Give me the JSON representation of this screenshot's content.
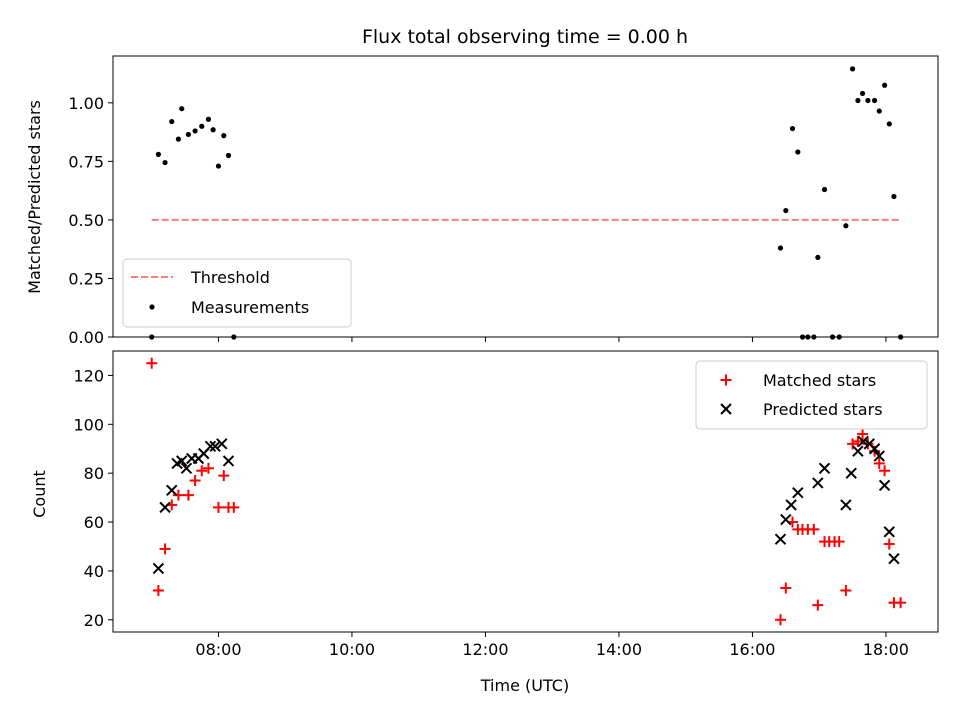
{
  "chart_data": [
    {
      "type": "scatter",
      "title": "Flux total observing time = 0.00 h",
      "xlabel": "",
      "ylabel": "Matched/Predicted stars",
      "xlim": [
        6.42,
        18.78
      ],
      "ylim": [
        0.0,
        1.2
      ],
      "yticks": [
        0.0,
        0.25,
        0.5,
        0.75,
        1.0
      ],
      "ytick_labels": [
        "0.00",
        "0.25",
        "0.50",
        "0.75",
        "1.00"
      ],
      "xticks": [
        8,
        10,
        12,
        14,
        16,
        18
      ],
      "legend": {
        "position": "lower-left",
        "entries": [
          "Threshold",
          "Measurements"
        ]
      },
      "threshold": {
        "name": "Threshold",
        "y": 0.5,
        "x": [
          7.0,
          18.2
        ],
        "color": "#f08080"
      },
      "series": [
        {
          "name": "Measurements",
          "color": "#000000",
          "points": [
            [
              7.0,
              0.0
            ],
            [
              7.1,
              0.78
            ],
            [
              7.2,
              0.745
            ],
            [
              7.3,
              0.92
            ],
            [
              7.4,
              0.845
            ],
            [
              7.45,
              0.975
            ],
            [
              7.55,
              0.865
            ],
            [
              7.65,
              0.88
            ],
            [
              7.75,
              0.9
            ],
            [
              7.85,
              0.93
            ],
            [
              7.92,
              0.885
            ],
            [
              8.0,
              0.73
            ],
            [
              8.08,
              0.86
            ],
            [
              8.15,
              0.775
            ],
            [
              8.23,
              0.0
            ],
            [
              16.42,
              0.38
            ],
            [
              16.5,
              0.54
            ],
            [
              16.6,
              0.89
            ],
            [
              16.68,
              0.79
            ],
            [
              16.75,
              0.0
            ],
            [
              16.83,
              0.0
            ],
            [
              16.92,
              0.0
            ],
            [
              16.98,
              0.34
            ],
            [
              17.08,
              0.63
            ],
            [
              17.2,
              0.0
            ],
            [
              17.3,
              0.0
            ],
            [
              17.4,
              0.475
            ],
            [
              17.5,
              1.145
            ],
            [
              17.58,
              1.01
            ],
            [
              17.65,
              1.04
            ],
            [
              17.73,
              1.01
            ],
            [
              17.83,
              1.01
            ],
            [
              17.9,
              0.965
            ],
            [
              17.98,
              1.075
            ],
            [
              18.05,
              0.91
            ],
            [
              18.12,
              0.6
            ],
            [
              18.22,
              0.0
            ]
          ]
        }
      ]
    },
    {
      "type": "scatter",
      "xlabel": "Time (UTC)",
      "ylabel": "Count",
      "xlim": [
        6.42,
        18.78
      ],
      "ylim": [
        15,
        130
      ],
      "yticks": [
        20,
        40,
        60,
        80,
        100,
        120
      ],
      "xticks": [
        8,
        10,
        12,
        14,
        16,
        18
      ],
      "xtick_labels": [
        "08:00",
        "10:00",
        "12:00",
        "14:00",
        "16:00",
        "18:00"
      ],
      "legend": {
        "position": "top-right",
        "entries": [
          "Matched stars",
          "Predicted stars"
        ]
      },
      "series": [
        {
          "name": "Matched stars",
          "marker": "plus",
          "color": "#ff0000",
          "points": [
            [
              7.0,
              125
            ],
            [
              7.1,
              32
            ],
            [
              7.2,
              49
            ],
            [
              7.3,
              67
            ],
            [
              7.4,
              71
            ],
            [
              7.55,
              71
            ],
            [
              7.65,
              77
            ],
            [
              7.75,
              81
            ],
            [
              7.85,
              82
            ],
            [
              8.0,
              66
            ],
            [
              8.08,
              79
            ],
            [
              8.15,
              66
            ],
            [
              8.23,
              66
            ],
            [
              16.42,
              20
            ],
            [
              16.5,
              33
            ],
            [
              16.6,
              60
            ],
            [
              16.68,
              57
            ],
            [
              16.75,
              57
            ],
            [
              16.83,
              57
            ],
            [
              16.92,
              57
            ],
            [
              16.98,
              26
            ],
            [
              17.08,
              52
            ],
            [
              17.15,
              52
            ],
            [
              17.23,
              52
            ],
            [
              17.3,
              52
            ],
            [
              17.4,
              32
            ],
            [
              17.5,
              92
            ],
            [
              17.58,
              93
            ],
            [
              17.65,
              96
            ],
            [
              17.73,
              92
            ],
            [
              17.83,
              89
            ],
            [
              17.9,
              84
            ],
            [
              17.98,
              81
            ],
            [
              18.05,
              51
            ],
            [
              18.12,
              27
            ],
            [
              18.22,
              27
            ]
          ]
        },
        {
          "name": "Predicted stars",
          "marker": "x",
          "color": "#000000",
          "points": [
            [
              7.1,
              41
            ],
            [
              7.2,
              66
            ],
            [
              7.3,
              73
            ],
            [
              7.38,
              84
            ],
            [
              7.45,
              85
            ],
            [
              7.52,
              82
            ],
            [
              7.6,
              86
            ],
            [
              7.7,
              86
            ],
            [
              7.78,
              88
            ],
            [
              7.88,
              91
            ],
            [
              7.95,
              91
            ],
            [
              8.05,
              92
            ],
            [
              8.15,
              85
            ],
            [
              16.42,
              53
            ],
            [
              16.5,
              61
            ],
            [
              16.58,
              67
            ],
            [
              16.68,
              72
            ],
            [
              16.98,
              76
            ],
            [
              17.08,
              82
            ],
            [
              17.4,
              67
            ],
            [
              17.48,
              80
            ],
            [
              17.58,
              89
            ],
            [
              17.66,
              93
            ],
            [
              17.75,
              92
            ],
            [
              17.83,
              90
            ],
            [
              17.9,
              87
            ],
            [
              17.98,
              75
            ],
            [
              18.05,
              56
            ],
            [
              18.12,
              45
            ]
          ]
        }
      ]
    }
  ]
}
